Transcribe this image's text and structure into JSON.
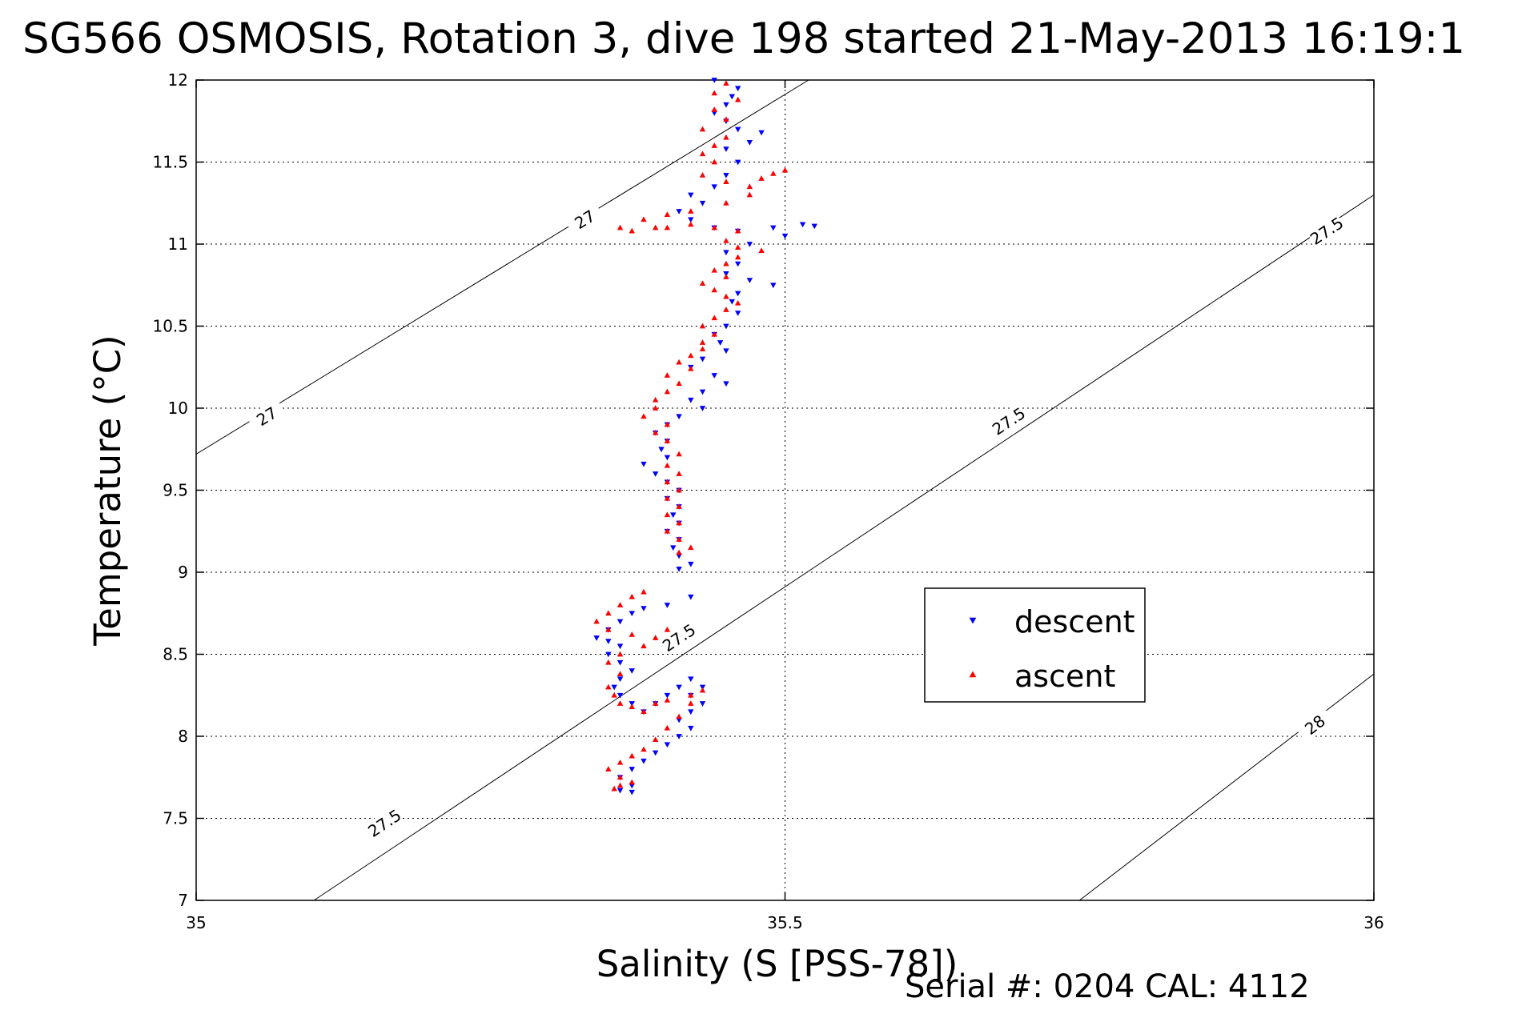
{
  "title": "SG566 OSMOSIS, Rotation 3, dive 198 started 21-May-2013 16:19:1",
  "footer": "Serial #: 0204  CAL: 4112",
  "colors": {
    "descent": "#0000ff",
    "ascent": "#ff0000",
    "grid": "#000000",
    "contour": "#000000"
  },
  "chart_data": {
    "type": "scatter",
    "xlabel": "Salinity (S [PSS-78])",
    "ylabel": "Temperature (°C)",
    "xlim": [
      35,
      36
    ],
    "ylim": [
      7,
      12
    ],
    "xticks": [
      "35",
      "35.5",
      "36"
    ],
    "yticks": [
      "7",
      "7.5",
      "8",
      "8.5",
      "9",
      "9.5",
      "10",
      "10.5",
      "11",
      "11.5",
      "12"
    ],
    "grid": true,
    "legend": {
      "position": "center-right",
      "entries": [
        "descent",
        "ascent"
      ]
    },
    "density_contours": [
      {
        "level": "27",
        "points": [
          [
            35.0,
            9.72
          ],
          [
            35.52,
            12.0
          ]
        ],
        "labels": [
          {
            "s": 35.06,
            "t": 9.95
          },
          {
            "s": 35.33,
            "t": 11.15
          }
        ]
      },
      {
        "level": "27.5",
        "points": [
          [
            35.1,
            7.0
          ],
          [
            36.0,
            11.3
          ]
        ],
        "labels": [
          {
            "s": 35.16,
            "t": 7.47
          },
          {
            "s": 35.41,
            "t": 8.6
          },
          {
            "s": 35.69,
            "t": 9.92
          },
          {
            "s": 35.96,
            "t": 11.08
          }
        ]
      },
      {
        "level": "28",
        "points": [
          [
            35.75,
            7.0
          ],
          [
            36.0,
            8.38
          ]
        ],
        "labels": [
          {
            "s": 35.95,
            "t": 8.07
          }
        ]
      }
    ],
    "series": [
      {
        "name": "descent",
        "marker": "triangle-down",
        "points": [
          [
            35.44,
            12.0
          ],
          [
            35.46,
            11.95
          ],
          [
            35.455,
            11.9
          ],
          [
            35.45,
            11.85
          ],
          [
            35.44,
            11.8
          ],
          [
            35.45,
            11.75
          ],
          [
            35.46,
            11.7
          ],
          [
            35.48,
            11.68
          ],
          [
            35.47,
            11.62
          ],
          [
            35.45,
            11.58
          ],
          [
            35.46,
            11.5
          ],
          [
            35.45,
            11.42
          ],
          [
            35.44,
            11.35
          ],
          [
            35.42,
            11.3
          ],
          [
            35.43,
            11.25
          ],
          [
            35.41,
            11.2
          ],
          [
            35.42,
            11.15
          ],
          [
            35.44,
            11.1
          ],
          [
            35.46,
            11.08
          ],
          [
            35.49,
            11.1
          ],
          [
            35.515,
            11.12
          ],
          [
            35.525,
            11.11
          ],
          [
            35.5,
            11.05
          ],
          [
            35.47,
            11.0
          ],
          [
            35.45,
            10.95
          ],
          [
            35.46,
            10.88
          ],
          [
            35.45,
            10.82
          ],
          [
            35.47,
            10.78
          ],
          [
            35.49,
            10.75
          ],
          [
            35.46,
            10.7
          ],
          [
            35.455,
            10.65
          ],
          [
            35.46,
            10.58
          ],
          [
            35.45,
            10.5
          ],
          [
            35.44,
            10.45
          ],
          [
            35.445,
            10.4
          ],
          [
            35.45,
            10.35
          ],
          [
            35.43,
            10.3
          ],
          [
            35.42,
            10.25
          ],
          [
            35.44,
            10.2
          ],
          [
            35.45,
            10.15
          ],
          [
            35.43,
            10.1
          ],
          [
            35.42,
            10.05
          ],
          [
            35.43,
            10.0
          ],
          [
            35.41,
            9.95
          ],
          [
            35.4,
            9.9
          ],
          [
            35.39,
            9.85
          ],
          [
            35.4,
            9.8
          ],
          [
            35.395,
            9.75
          ],
          [
            35.4,
            9.7
          ],
          [
            35.38,
            9.66
          ],
          [
            35.39,
            9.6
          ],
          [
            35.4,
            9.55
          ],
          [
            35.41,
            9.5
          ],
          [
            35.4,
            9.45
          ],
          [
            35.41,
            9.4
          ],
          [
            35.405,
            9.35
          ],
          [
            35.41,
            9.3
          ],
          [
            35.4,
            9.25
          ],
          [
            35.41,
            9.2
          ],
          [
            35.405,
            9.15
          ],
          [
            35.41,
            9.1
          ],
          [
            35.42,
            9.05
          ],
          [
            35.41,
            9.02
          ],
          [
            35.42,
            8.85
          ],
          [
            35.4,
            8.8
          ],
          [
            35.38,
            8.78
          ],
          [
            35.37,
            8.75
          ],
          [
            35.36,
            8.7
          ],
          [
            35.35,
            8.65
          ],
          [
            35.34,
            8.6
          ],
          [
            35.35,
            8.58
          ],
          [
            35.36,
            8.55
          ],
          [
            35.35,
            8.5
          ],
          [
            35.36,
            8.45
          ],
          [
            35.37,
            8.4
          ],
          [
            35.36,
            8.35
          ],
          [
            35.355,
            8.3
          ],
          [
            35.36,
            8.25
          ],
          [
            35.37,
            8.2
          ],
          [
            35.38,
            8.15
          ],
          [
            35.39,
            8.2
          ],
          [
            35.4,
            8.25
          ],
          [
            35.41,
            8.3
          ],
          [
            35.42,
            8.35
          ],
          [
            35.43,
            8.3
          ],
          [
            35.42,
            8.25
          ],
          [
            35.43,
            8.2
          ],
          [
            35.42,
            8.15
          ],
          [
            35.41,
            8.1
          ],
          [
            35.42,
            8.05
          ],
          [
            35.41,
            8.0
          ],
          [
            35.4,
            7.95
          ],
          [
            35.39,
            7.9
          ],
          [
            35.38,
            7.85
          ],
          [
            35.37,
            7.8
          ],
          [
            35.36,
            7.75
          ],
          [
            35.37,
            7.7
          ],
          [
            35.36,
            7.67
          ],
          [
            35.37,
            7.66
          ]
        ]
      },
      {
        "name": "ascent",
        "marker": "triangle-up",
        "points": [
          [
            35.45,
            11.98
          ],
          [
            35.44,
            11.92
          ],
          [
            35.46,
            11.88
          ],
          [
            35.44,
            11.82
          ],
          [
            35.45,
            11.76
          ],
          [
            35.43,
            11.7
          ],
          [
            35.45,
            11.65
          ],
          [
            35.44,
            11.6
          ],
          [
            35.43,
            11.55
          ],
          [
            35.44,
            11.5
          ],
          [
            35.43,
            11.42
          ],
          [
            35.45,
            11.38
          ],
          [
            35.47,
            11.35
          ],
          [
            35.48,
            11.4
          ],
          [
            35.49,
            11.43
          ],
          [
            35.5,
            11.45
          ],
          [
            35.47,
            11.3
          ],
          [
            35.45,
            11.25
          ],
          [
            35.42,
            11.2
          ],
          [
            35.4,
            11.18
          ],
          [
            35.38,
            11.15
          ],
          [
            35.39,
            11.1
          ],
          [
            35.37,
            11.08
          ],
          [
            35.36,
            11.1
          ],
          [
            35.4,
            11.1
          ],
          [
            35.42,
            11.12
          ],
          [
            35.44,
            11.1
          ],
          [
            35.46,
            11.08
          ],
          [
            35.45,
            11.02
          ],
          [
            35.46,
            10.98
          ],
          [
            35.48,
            10.96
          ],
          [
            35.46,
            10.92
          ],
          [
            35.45,
            10.88
          ],
          [
            35.44,
            10.84
          ],
          [
            35.45,
            10.8
          ],
          [
            35.43,
            10.76
          ],
          [
            35.44,
            10.72
          ],
          [
            35.45,
            10.68
          ],
          [
            35.46,
            10.64
          ],
          [
            35.45,
            10.6
          ],
          [
            35.44,
            10.55
          ],
          [
            35.43,
            10.5
          ],
          [
            35.44,
            10.45
          ],
          [
            35.43,
            10.4
          ],
          [
            35.43,
            10.36
          ],
          [
            35.42,
            10.32
          ],
          [
            35.41,
            10.28
          ],
          [
            35.42,
            10.24
          ],
          [
            35.4,
            10.2
          ],
          [
            35.41,
            10.15
          ],
          [
            35.4,
            10.1
          ],
          [
            35.39,
            10.05
          ],
          [
            35.39,
            10.0
          ],
          [
            35.38,
            9.95
          ],
          [
            35.4,
            9.9
          ],
          [
            35.39,
            9.85
          ],
          [
            35.4,
            9.8
          ],
          [
            35.41,
            9.72
          ],
          [
            35.4,
            9.65
          ],
          [
            35.41,
            9.6
          ],
          [
            35.4,
            9.55
          ],
          [
            35.41,
            9.5
          ],
          [
            35.4,
            9.45
          ],
          [
            35.41,
            9.4
          ],
          [
            35.4,
            9.35
          ],
          [
            35.41,
            9.3
          ],
          [
            35.4,
            9.25
          ],
          [
            35.41,
            9.2
          ],
          [
            35.42,
            9.15
          ],
          [
            35.41,
            9.12
          ],
          [
            35.38,
            8.88
          ],
          [
            35.37,
            8.85
          ],
          [
            35.36,
            8.8
          ],
          [
            35.35,
            8.75
          ],
          [
            35.34,
            8.7
          ],
          [
            35.35,
            8.65
          ],
          [
            35.37,
            8.62
          ],
          [
            35.39,
            8.6
          ],
          [
            35.4,
            8.65
          ],
          [
            35.38,
            8.55
          ],
          [
            35.36,
            8.5
          ],
          [
            35.35,
            8.45
          ],
          [
            35.36,
            8.38
          ],
          [
            35.35,
            8.3
          ],
          [
            35.355,
            8.25
          ],
          [
            35.36,
            8.2
          ],
          [
            35.37,
            8.18
          ],
          [
            35.38,
            8.15
          ],
          [
            35.39,
            8.2
          ],
          [
            35.4,
            8.22
          ],
          [
            35.42,
            8.25
          ],
          [
            35.43,
            8.28
          ],
          [
            35.42,
            8.2
          ],
          [
            35.41,
            8.12
          ],
          [
            35.4,
            8.05
          ],
          [
            35.39,
            7.98
          ],
          [
            35.38,
            7.92
          ],
          [
            35.37,
            7.88
          ],
          [
            35.36,
            7.84
          ],
          [
            35.35,
            7.8
          ],
          [
            35.36,
            7.75
          ],
          [
            35.37,
            7.72
          ],
          [
            35.36,
            7.7
          ],
          [
            35.355,
            7.68
          ]
        ]
      }
    ]
  }
}
